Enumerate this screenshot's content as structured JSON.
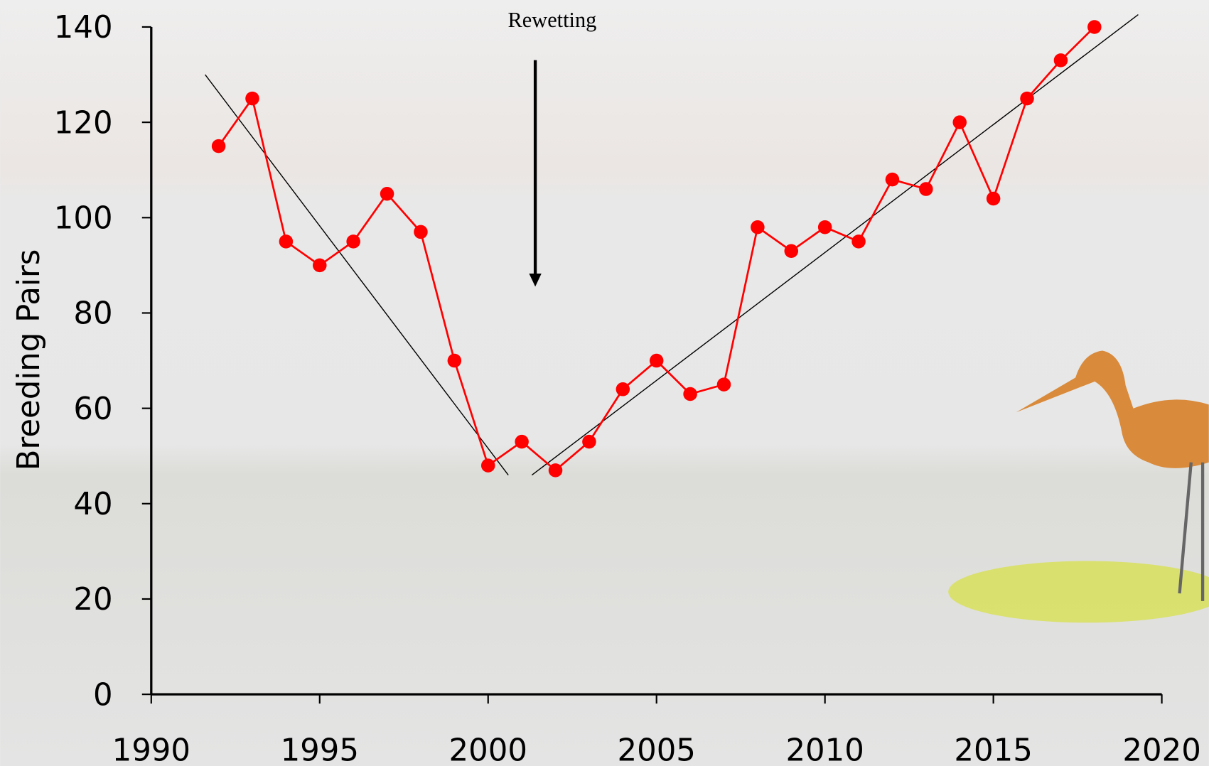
{
  "chart_data": {
    "type": "line",
    "y_label": "Breeding Pairs",
    "x": [
      1992,
      1993,
      1994,
      1995,
      1996,
      1997,
      1998,
      1999,
      2000,
      2001,
      2002,
      2003,
      2004,
      2005,
      2006,
      2007,
      2008,
      2009,
      2010,
      2011,
      2012,
      2013,
      2014,
      2015,
      2016,
      2017,
      2018
    ],
    "values": [
      115,
      125,
      95,
      90,
      95,
      105,
      97,
      70,
      48,
      53,
      47,
      53,
      64,
      70,
      63,
      65,
      98,
      93,
      98,
      95,
      108,
      106,
      120,
      104,
      125,
      133,
      140
    ],
    "color": "#ff0000",
    "trend_lines": [
      {
        "x": [
          1991.6,
          2000.6
        ],
        "values": [
          130,
          46
        ]
      },
      {
        "x": [
          2001.3,
          2019.3
        ],
        "values": [
          46,
          142.6
        ]
      }
    ],
    "trend_color": "#000000",
    "annotation": {
      "text": "Rewetting",
      "x": 2001.4
    },
    "xlim": [
      1990,
      2020
    ],
    "xticks": [
      1990,
      1995,
      2000,
      2005,
      2010,
      2015,
      2020
    ],
    "ylim": [
      0,
      140
    ],
    "yticks": [
      0,
      20,
      40,
      60,
      80,
      100,
      120,
      140
    ]
  }
}
